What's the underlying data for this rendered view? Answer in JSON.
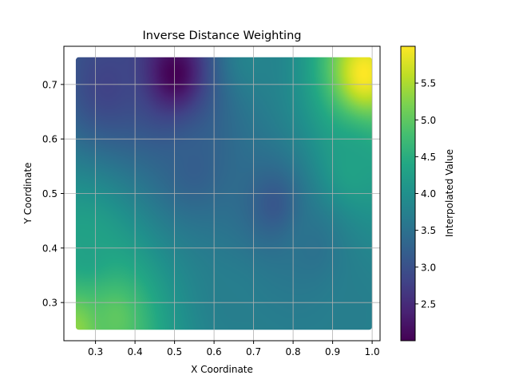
{
  "chart_data": {
    "type": "heatmap",
    "title": "Inverse Distance Weighting",
    "xlabel": "X Coordinate",
    "ylabel": "Y Coordinate",
    "colorbar_label": "Interpolated Value",
    "xlim": [
      0.22,
      1.02
    ],
    "ylim": [
      0.23,
      0.77
    ],
    "x_ticks": [
      0.3,
      0.4,
      0.5,
      0.6,
      0.7,
      0.8,
      0.9,
      1.0
    ],
    "x_tick_labels": [
      "0.3",
      "0.4",
      "0.5",
      "0.6",
      "0.7",
      "0.8",
      "0.9",
      "1.0"
    ],
    "y_ticks": [
      0.3,
      0.4,
      0.5,
      0.6,
      0.7
    ],
    "y_tick_labels": [
      "0.3",
      "0.4",
      "0.5",
      "0.6",
      "0.7"
    ],
    "colorbar_range": [
      2.0,
      6.0
    ],
    "colorbar_ticks": [
      2.5,
      3.0,
      3.5,
      4.0,
      4.5,
      5.0,
      5.5
    ],
    "colorbar_tick_labels": [
      "2.5",
      "3.0",
      "3.5",
      "4.0",
      "4.5",
      "5.0",
      "5.5"
    ],
    "colormap": "viridis",
    "grid": true,
    "data_extent": {
      "x": [
        0.25,
        1.0
      ],
      "y": [
        0.25,
        0.75
      ]
    },
    "control_points": [
      {
        "x": 0.25,
        "y": 0.25,
        "value": 5.3
      },
      {
        "x": 0.35,
        "y": 0.27,
        "value": 5.0
      },
      {
        "x": 0.28,
        "y": 0.4,
        "value": 4.3
      },
      {
        "x": 0.5,
        "y": 0.72,
        "value": 2.0
      },
      {
        "x": 0.33,
        "y": 0.7,
        "value": 2.8
      },
      {
        "x": 0.55,
        "y": 0.55,
        "value": 3.2
      },
      {
        "x": 0.65,
        "y": 0.3,
        "value": 3.7
      },
      {
        "x": 0.75,
        "y": 0.48,
        "value": 3.1
      },
      {
        "x": 0.85,
        "y": 0.4,
        "value": 3.5
      },
      {
        "x": 0.7,
        "y": 0.75,
        "value": 3.8
      },
      {
        "x": 0.98,
        "y": 0.72,
        "value": 6.0
      },
      {
        "x": 0.95,
        "y": 0.55,
        "value": 4.3
      },
      {
        "x": 0.95,
        "y": 0.28,
        "value": 3.7
      }
    ]
  }
}
